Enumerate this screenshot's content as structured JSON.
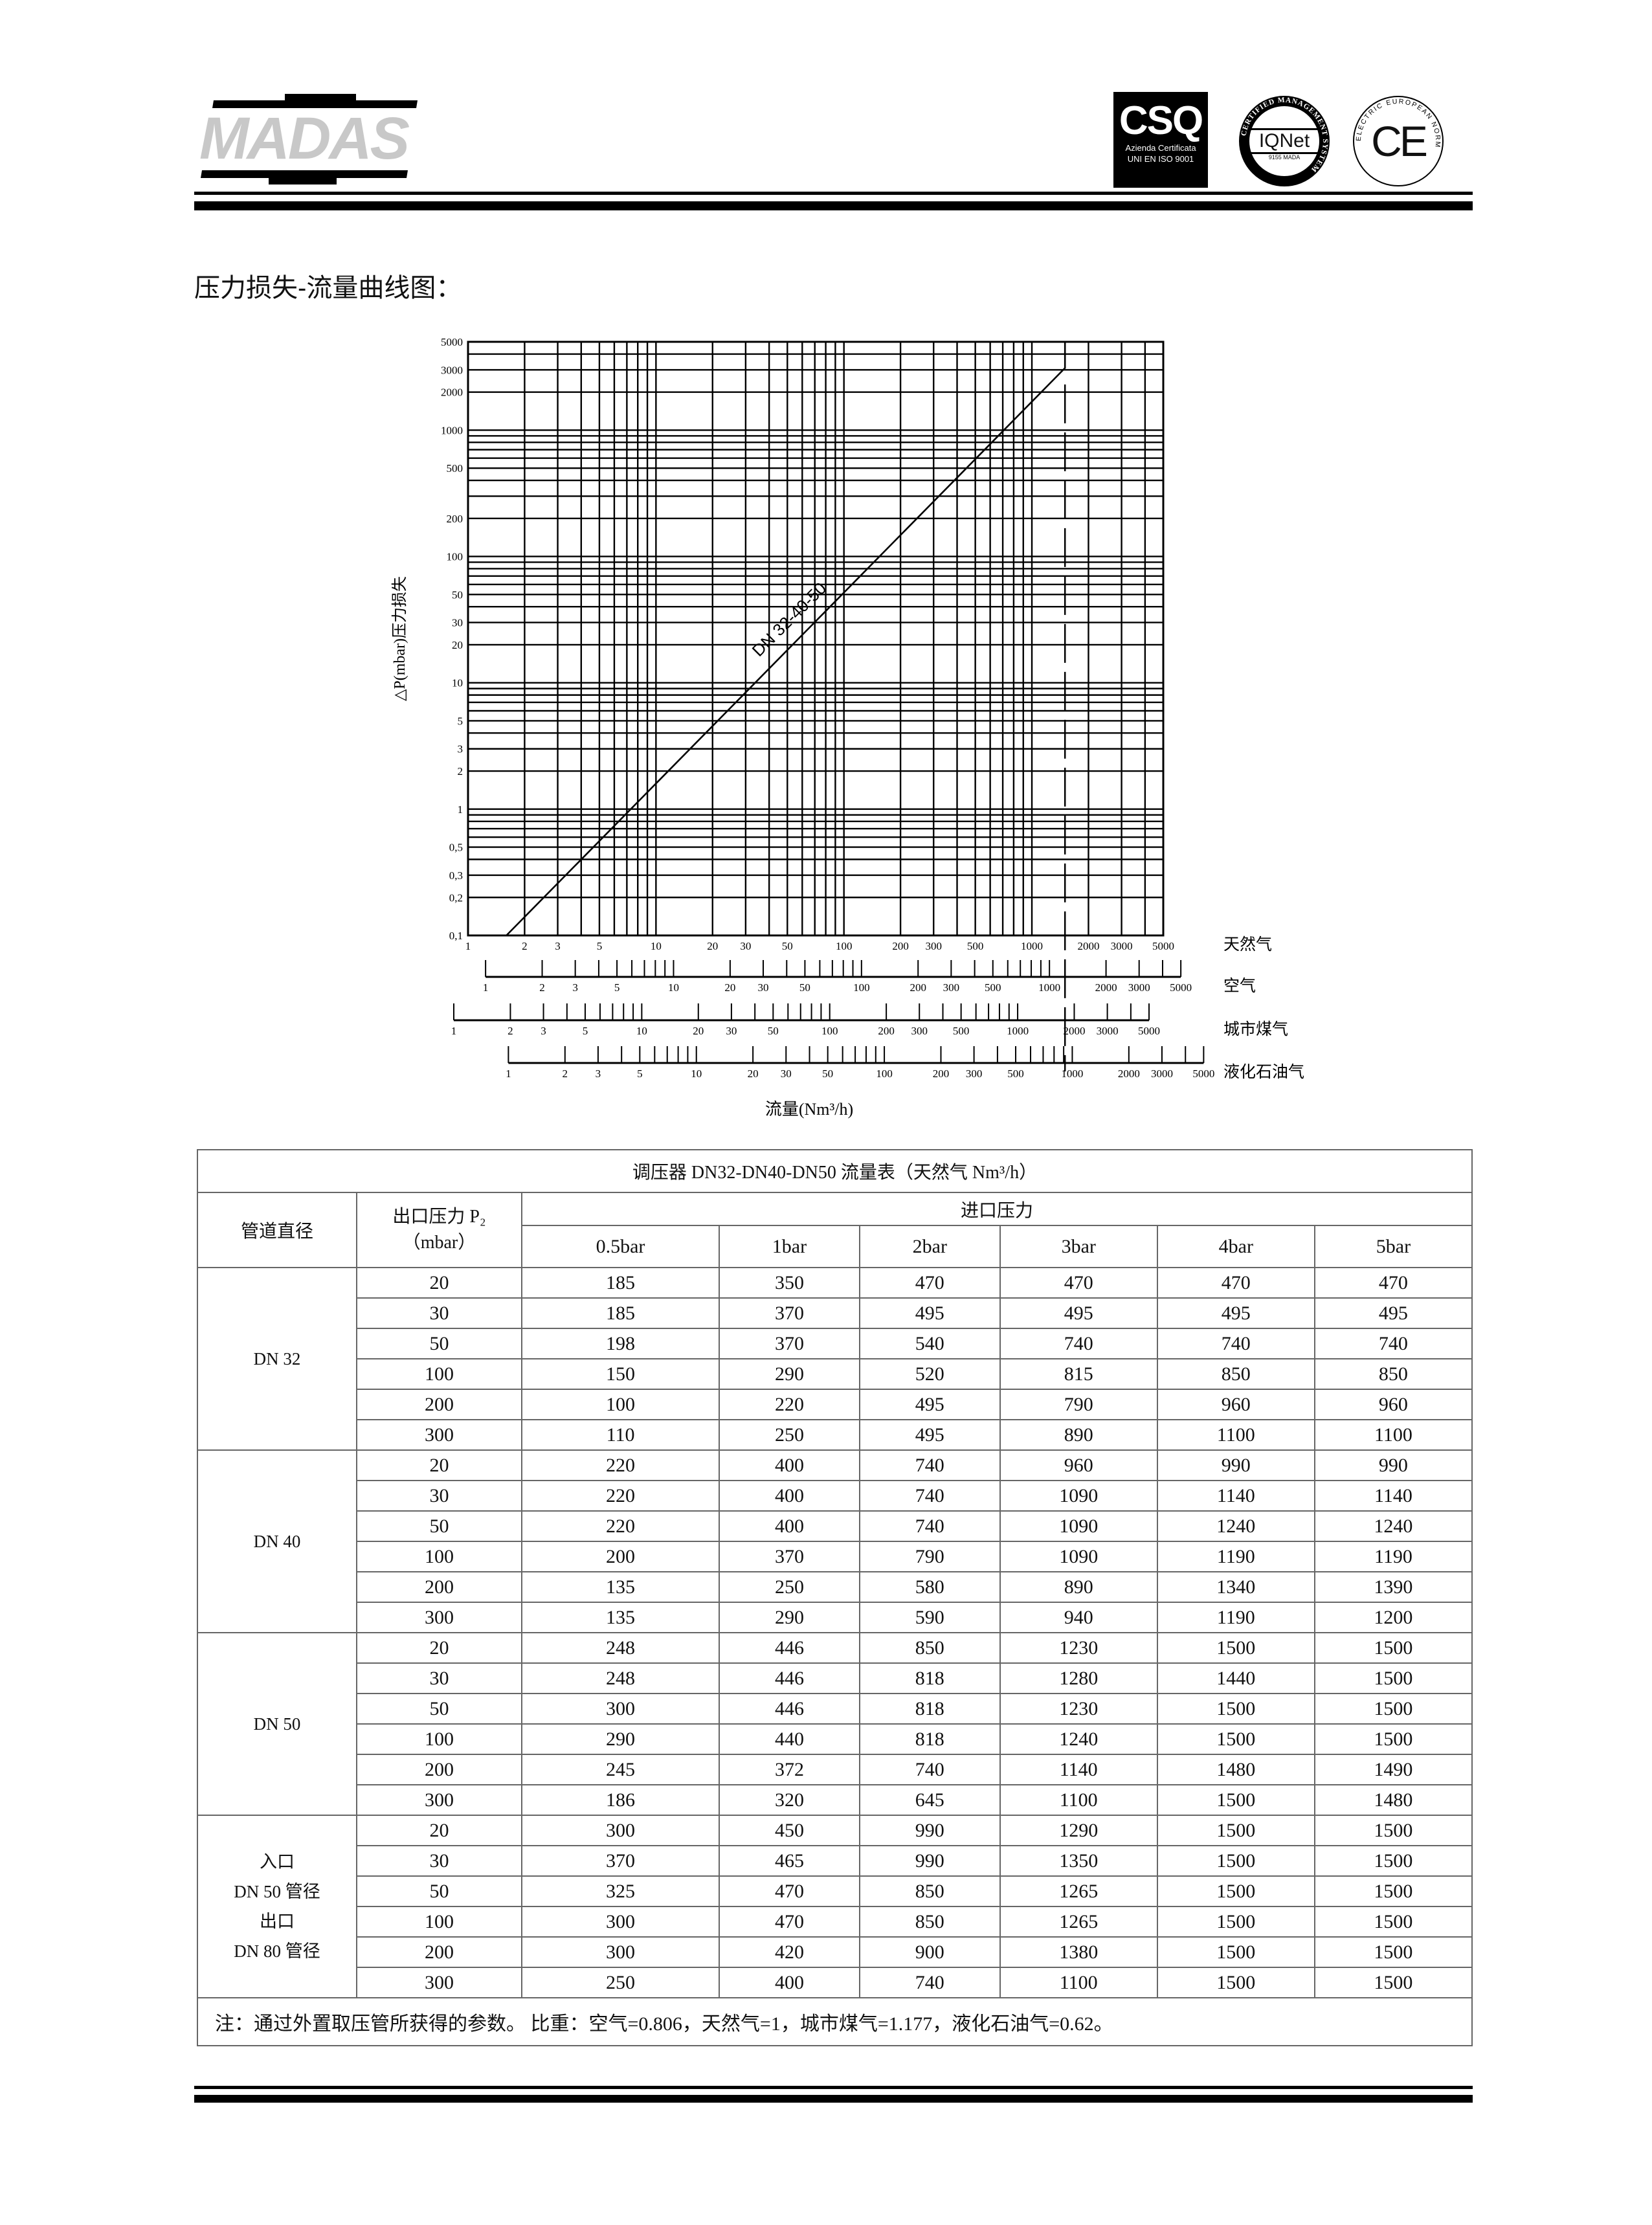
{
  "header": {
    "brand": "MADAS",
    "cert_csq": {
      "mark": "CSQ",
      "line1": "Azienda Certificata",
      "line2": "UNI EN ISO 9001"
    },
    "cert_iqnet": {
      "mark": "IQNet",
      "ring": "CERTIFIED MANAGEMENT SYSTEM"
    },
    "cert_ce": {
      "mark": "CE",
      "ring": "ELECTRIC EUROPEAN NORM"
    }
  },
  "section_title": "压力损失-流量曲线图：",
  "chart_data": {
    "type": "line",
    "x_scale": "log",
    "y_scale": "log",
    "xlim": [
      1,
      5000
    ],
    "ylim": [
      0.1,
      5000
    ],
    "grid": true,
    "ylabel": "△P(mbar)压力损失",
    "xlabel": "流量(Nm³/h)",
    "y_ticks": [
      "0,1",
      "0,2",
      "0,3",
      "0,5",
      "1",
      "2",
      "3",
      "5",
      "10",
      "20",
      "30",
      "50",
      "100",
      "200",
      "500",
      "1000",
      "2000",
      "3000",
      "5000"
    ],
    "y_tick_values": [
      0.1,
      0.2,
      0.3,
      0.5,
      1,
      2,
      3,
      5,
      10,
      20,
      30,
      50,
      100,
      200,
      500,
      1000,
      2000,
      3000,
      5000
    ],
    "x_ticks": [
      "1",
      "2",
      "3",
      "5",
      "10",
      "20",
      "30",
      "50",
      "100",
      "200",
      "300",
      "500",
      "1000",
      "2000",
      "3000",
      "5000"
    ],
    "x_tick_values": [
      1,
      2,
      3,
      5,
      10,
      20,
      30,
      50,
      100,
      200,
      300,
      500,
      1000,
      2000,
      3000,
      5000
    ],
    "series": [
      {
        "name": "DN 32-40-50",
        "points": [
          [
            1.6,
            0.1
          ],
          [
            1500,
            3100
          ],
          [
            1500,
            5000
          ]
        ]
      }
    ],
    "limit_line_x": 1500,
    "gas_scales": [
      {
        "name": "天然气",
        "natural_gas_value_at_1": 1.0
      },
      {
        "name": "空气",
        "natural_gas_value_at_1": 1.24
      },
      {
        "name": "城市煤气",
        "natural_gas_value_at_1": 0.84
      },
      {
        "name": "液化石油气",
        "natural_gas_value_at_1": 1.64
      }
    ]
  },
  "table": {
    "title": "调压器 DN32-DN40-DN50 流量表（天然气 Nm³/h）",
    "col_pipe": "管道直径",
    "col_p2_line1": "出口压力 P₂",
    "col_p2_line2": "（mbar）",
    "col_inlet": "进口压力",
    "inlet_pressures": [
      "0.5bar",
      "1bar",
      "2bar",
      "3bar",
      "4bar",
      "5bar"
    ],
    "groups": [
      {
        "pipe": [
          "DN 32"
        ],
        "rows": [
          {
            "p2": "20",
            "values": [
              "185",
              "350",
              "470",
              "470",
              "470",
              "470"
            ]
          },
          {
            "p2": "30",
            "values": [
              "185",
              "370",
              "495",
              "495",
              "495",
              "495"
            ]
          },
          {
            "p2": "50",
            "values": [
              "198",
              "370",
              "540",
              "740",
              "740",
              "740"
            ]
          },
          {
            "p2": "100",
            "values": [
              "150",
              "290",
              "520",
              "815",
              "850",
              "850"
            ]
          },
          {
            "p2": "200",
            "values": [
              "100",
              "220",
              "495",
              "790",
              "960",
              "960"
            ]
          },
          {
            "p2": "300",
            "values": [
              "110",
              "250",
              "495",
              "890",
              "1100",
              "1100"
            ]
          }
        ]
      },
      {
        "pipe": [
          "DN 40"
        ],
        "rows": [
          {
            "p2": "20",
            "values": [
              "220",
              "400",
              "740",
              "960",
              "990",
              "990"
            ]
          },
          {
            "p2": "30",
            "values": [
              "220",
              "400",
              "740",
              "1090",
              "1140",
              "1140"
            ]
          },
          {
            "p2": "50",
            "values": [
              "220",
              "400",
              "740",
              "1090",
              "1240",
              "1240"
            ]
          },
          {
            "p2": "100",
            "values": [
              "200",
              "370",
              "790",
              "1090",
              "1190",
              "1190"
            ]
          },
          {
            "p2": "200",
            "values": [
              "135",
              "250",
              "580",
              "890",
              "1340",
              "1390"
            ]
          },
          {
            "p2": "300",
            "values": [
              "135",
              "290",
              "590",
              "940",
              "1190",
              "1200"
            ]
          }
        ]
      },
      {
        "pipe": [
          "DN 50"
        ],
        "rows": [
          {
            "p2": "20",
            "values": [
              "248",
              "446",
              "850",
              "1230",
              "1500",
              "1500"
            ]
          },
          {
            "p2": "30",
            "values": [
              "248",
              "446",
              "818",
              "1280",
              "1440",
              "1500"
            ]
          },
          {
            "p2": "50",
            "values": [
              "300",
              "446",
              "818",
              "1230",
              "1500",
              "1500"
            ]
          },
          {
            "p2": "100",
            "values": [
              "290",
              "440",
              "818",
              "1240",
              "1500",
              "1500"
            ]
          },
          {
            "p2": "200",
            "values": [
              "245",
              "372",
              "740",
              "1140",
              "1480",
              "1490"
            ]
          },
          {
            "p2": "300",
            "values": [
              "186",
              "320",
              "645",
              "1100",
              "1500",
              "1480"
            ]
          }
        ]
      },
      {
        "pipe": [
          "入口",
          "DN 50 管径",
          "出口",
          "DN 80 管径"
        ],
        "rows": [
          {
            "p2": "20",
            "values": [
              "300",
              "450",
              "990",
              "1290",
              "1500",
              "1500"
            ]
          },
          {
            "p2": "30",
            "values": [
              "370",
              "465",
              "990",
              "1350",
              "1500",
              "1500"
            ]
          },
          {
            "p2": "50",
            "values": [
              "325",
              "470",
              "850",
              "1265",
              "1500",
              "1500"
            ]
          },
          {
            "p2": "100",
            "values": [
              "300",
              "470",
              "850",
              "1265",
              "1500",
              "1500"
            ]
          },
          {
            "p2": "200",
            "values": [
              "300",
              "420",
              "900",
              "1380",
              "1500",
              "1500"
            ]
          },
          {
            "p2": "300",
            "values": [
              "250",
              "400",
              "740",
              "1100",
              "1500",
              "1500"
            ]
          }
        ]
      }
    ],
    "note": "注：通过外置取压管所获得的参数。  比重：空气=0.806，天然气=1，城市煤气=1.177，液化石油气=0.62。"
  }
}
